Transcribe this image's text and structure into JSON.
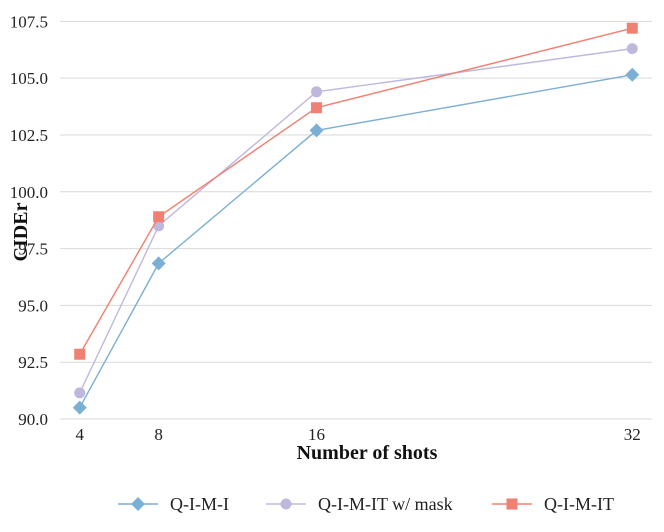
{
  "chart_data": {
    "type": "line",
    "xlabel": "Number of shots",
    "ylabel": "CIDEr",
    "x": [
      4,
      8,
      16,
      32
    ],
    "xticks": [
      4,
      8,
      16,
      32
    ],
    "xlim": [
      3.0,
      33.0
    ],
    "ylim": [
      90.0,
      108.0
    ],
    "yticks": [
      "90.0",
      "92.5",
      "95.0",
      "97.5",
      "100.0",
      "102.5",
      "105.0",
      "107.5"
    ],
    "grid": "horizontal",
    "legend_position": "bottom",
    "series": [
      {
        "name": "Q-I-M-I",
        "color": "#7bafd4",
        "marker": "diamond",
        "values": [
          90.5,
          96.85,
          102.7,
          105.15
        ]
      },
      {
        "name": "Q-I-M-IT w/ mask",
        "color": "#c0b8dc",
        "marker": "circle",
        "values": [
          91.15,
          98.5,
          104.4,
          106.3
        ]
      },
      {
        "name": "Q-I-M-IT",
        "color": "#f08072",
        "marker": "square",
        "values": [
          92.85,
          98.9,
          103.7,
          107.2
        ]
      }
    ]
  }
}
